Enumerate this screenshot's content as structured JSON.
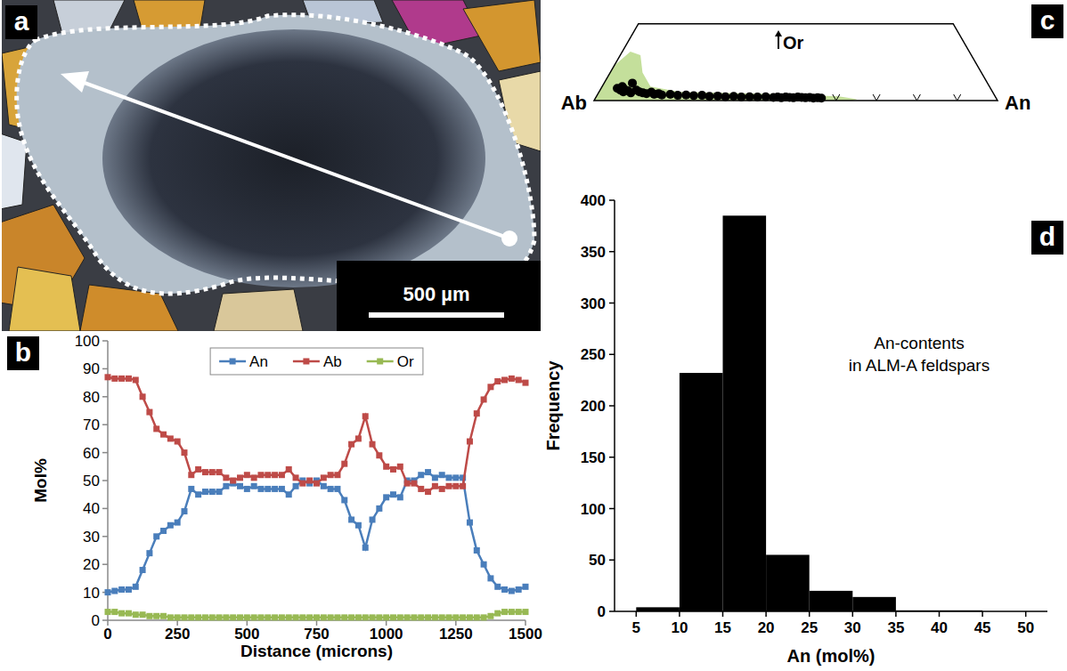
{
  "chart_data": [
    {
      "type": "image",
      "panel": "a",
      "scale_bar": "500 µm"
    },
    {
      "type": "line",
      "panel": "b",
      "x_label": "Distance (microns)",
      "y_label": "Mol%",
      "x": [
        0,
        25,
        50,
        75,
        100,
        125,
        150,
        175,
        200,
        225,
        250,
        275,
        300,
        325,
        350,
        375,
        400,
        425,
        450,
        475,
        500,
        525,
        550,
        575,
        600,
        625,
        650,
        675,
        700,
        725,
        750,
        775,
        800,
        825,
        850,
        875,
        900,
        925,
        950,
        975,
        1000,
        1025,
        1050,
        1075,
        1100,
        1125,
        1150,
        1175,
        1200,
        1225,
        1250,
        1275,
        1300,
        1325,
        1350,
        1375,
        1400,
        1425,
        1450,
        1475,
        1500
      ],
      "series": [
        {
          "name": "An",
          "color": "#4a7ebb",
          "marker": "square",
          "values": [
            10,
            10.5,
            11,
            11,
            12,
            18,
            24,
            30,
            32,
            34,
            35,
            39,
            47,
            45,
            46,
            46,
            46,
            48,
            49,
            48,
            47,
            48,
            47,
            47,
            47,
            47,
            45,
            48,
            50,
            49,
            50,
            48,
            47,
            47,
            43,
            36,
            34,
            26,
            36,
            40,
            44,
            45,
            44,
            50,
            50,
            52,
            53,
            51,
            52,
            51,
            51,
            51,
            35,
            25,
            20,
            15,
            12,
            11,
            10.5,
            11,
            12
          ]
        },
        {
          "name": "Ab",
          "color": "#be4b48",
          "marker": "square",
          "values": [
            87,
            86.5,
            86.5,
            86.5,
            86,
            80,
            74.5,
            68.5,
            66.5,
            65,
            64,
            60,
            52,
            54,
            53,
            53,
            53,
            51,
            50,
            51,
            52,
            51,
            52,
            52,
            52,
            52,
            54,
            51,
            49,
            50,
            49,
            51,
            52,
            52,
            56,
            63,
            65,
            73,
            63,
            59,
            55,
            54,
            55,
            49,
            49,
            47,
            46,
            48,
            47,
            48,
            48,
            48,
            64,
            74,
            79,
            83.5,
            85.5,
            86,
            86.5,
            86,
            85
          ]
        },
        {
          "name": "Or",
          "color": "#98b954",
          "marker": "square",
          "values": [
            3,
            3,
            2.5,
            2.5,
            2,
            2,
            1.5,
            1.5,
            1.5,
            1,
            1,
            1,
            1,
            1,
            1,
            1,
            1,
            1,
            1,
            1,
            1,
            1,
            1,
            1,
            1,
            1,
            1,
            1,
            1,
            1,
            1,
            1,
            1,
            1,
            1,
            1,
            1,
            1,
            1,
            1,
            1,
            1,
            1,
            1,
            1,
            1,
            1,
            1,
            1,
            1,
            1,
            1,
            1,
            1,
            1,
            1.5,
            2.5,
            3,
            3,
            3,
            3
          ]
        }
      ],
      "xlim": [
        0,
        1500
      ],
      "xticks": [
        0,
        250,
        500,
        750,
        1000,
        1250,
        1500
      ],
      "ylim": [
        0,
        100
      ],
      "yticks": [
        0,
        10,
        20,
        30,
        40,
        50,
        60,
        70,
        80,
        90,
        100
      ],
      "legend": "top",
      "grid": false
    },
    {
      "type": "ternary",
      "panel": "c",
      "corners": [
        "Ab",
        "An",
        "Or"
      ],
      "color": "#000000",
      "marker": "circle",
      "points": {
        "An": [
          4,
          5,
          5,
          6,
          6,
          7,
          7,
          8,
          9,
          10,
          11,
          12,
          13,
          14,
          15,
          16,
          18,
          20,
          22,
          24,
          26,
          28,
          30,
          32,
          34,
          36,
          38,
          40,
          42,
          44,
          45,
          46,
          47,
          48,
          49,
          50,
          51,
          52,
          53,
          54,
          55,
          56
        ],
        "Or": [
          3.5,
          3,
          4,
          2.5,
          3.2,
          5,
          2.8,
          2.2,
          3,
          2.5,
          2.2,
          2,
          2.4,
          1.8,
          2,
          1.6,
          1.8,
          1.5,
          1.6,
          1.4,
          1.5,
          1.2,
          1.3,
          1.1,
          1.2,
          1,
          1.1,
          1,
          1.1,
          0.9,
          1,
          0.8,
          1,
          0.9,
          0.8,
          1,
          0.9,
          0.8,
          0.9,
          0.7,
          0.8,
          0.7
        ]
      },
      "field": {
        "color": "#c4df9b",
        "An": [
          0,
          0,
          2,
          5,
          8,
          12,
          20,
          40,
          60,
          65,
          64
        ],
        "Or": [
          0,
          10,
          14,
          13,
          8,
          4,
          2.5,
          2,
          1.2,
          0.4,
          0
        ]
      },
      "ylim": [
        0,
        22
      ],
      "xticks": [
        50,
        60,
        70,
        80,
        90
      ],
      "tick_labels": false
    },
    {
      "type": "histogram",
      "panel": "d",
      "annotation": [
        "An-contents",
        "in ALM-A feldspars"
      ],
      "x_label": "An (mol%)",
      "y_label": "Frequency",
      "bins": [
        5,
        10,
        15,
        20,
        25,
        30,
        35,
        40,
        45,
        50
      ],
      "values": [
        4,
        232,
        385,
        55,
        20,
        14,
        1,
        1,
        0
      ],
      "color": "#000000",
      "xlim": [
        2.5,
        52.5
      ],
      "xticks": [
        5,
        10,
        15,
        20,
        25,
        30,
        35,
        40,
        45,
        50
      ],
      "ylim": [
        0,
        400
      ],
      "yticks": [
        0,
        50,
        100,
        150,
        200,
        250,
        300,
        350,
        400
      ]
    }
  ]
}
